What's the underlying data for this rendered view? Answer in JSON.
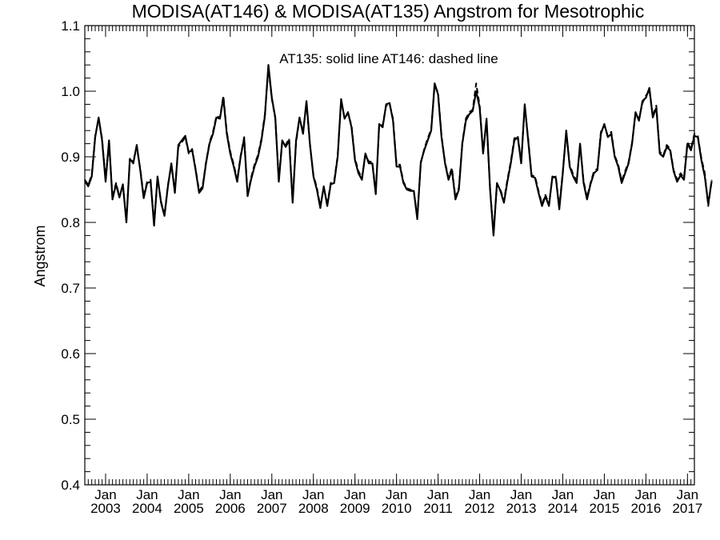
{
  "chart_data": {
    "type": "line",
    "title": "MODISA(AT146) & MODISA(AT135)  Angstrom for Mesotrophic",
    "xlabel": "",
    "ylabel": "Angstrom",
    "annotation": "AT135: solid line   AT146: dashed line",
    "ylim": [
      0.4,
      1.1
    ],
    "xlim": [
      "2002-07",
      "2017-03"
    ],
    "yticks": [
      "0.4",
      "0.5",
      "0.6",
      "0.7",
      "0.8",
      "0.9",
      "1.0",
      "1.1"
    ],
    "xticks": [
      {
        "month": "Jan",
        "year": "2003",
        "date": "2003-01"
      },
      {
        "month": "Jan",
        "year": "2004",
        "date": "2004-01"
      },
      {
        "month": "Jan",
        "year": "2005",
        "date": "2005-01"
      },
      {
        "month": "Jan",
        "year": "2006",
        "date": "2006-01"
      },
      {
        "month": "Jan",
        "year": "2007",
        "date": "2007-01"
      },
      {
        "month": "Jan",
        "year": "2008",
        "date": "2008-01"
      },
      {
        "month": "Jan",
        "year": "2009",
        "date": "2009-01"
      },
      {
        "month": "Jan",
        "year": "2010",
        "date": "2010-01"
      },
      {
        "month": "Jan",
        "year": "2011",
        "date": "2011-01"
      },
      {
        "month": "Jan",
        "year": "2012",
        "date": "2012-01"
      },
      {
        "month": "Jan",
        "year": "2013",
        "date": "2013-01"
      },
      {
        "month": "Jan",
        "year": "2014",
        "date": "2014-01"
      },
      {
        "month": "Jan",
        "year": "2015",
        "date": "2015-01"
      },
      {
        "month": "Jan",
        "year": "2016",
        "date": "2016-01"
      },
      {
        "month": "Jan",
        "year": "2017",
        "date": "2017-01"
      }
    ],
    "grid": false,
    "start": "2002-07",
    "series": [
      {
        "dash": "solid",
        "values": [
          0.863,
          0.855,
          0.87,
          0.93,
          0.96,
          0.925,
          0.862,
          0.925,
          0.835,
          0.858,
          0.838,
          0.858,
          0.8,
          0.897,
          0.89,
          0.918,
          0.88,
          0.837,
          0.86,
          0.862,
          0.795,
          0.87,
          0.83,
          0.81,
          0.855,
          0.89,
          0.845,
          0.918,
          0.925,
          0.932,
          0.907,
          0.91,
          0.88,
          0.845,
          0.852,
          0.89,
          0.92,
          0.935,
          0.96,
          0.958,
          0.99,
          0.935,
          0.905,
          0.885,
          0.862,
          0.9,
          0.928,
          0.84,
          0.865,
          0.885,
          0.9,
          0.925,
          0.962,
          1.04,
          0.99,
          0.96,
          0.862,
          0.925,
          0.915,
          0.925,
          0.83,
          0.925,
          0.96,
          0.935,
          0.985,
          0.92,
          0.87,
          0.85,
          0.822,
          0.855,
          0.825,
          0.858,
          0.86,
          0.9,
          0.988,
          0.958,
          0.968,
          0.945,
          0.895,
          0.875,
          0.865,
          0.905,
          0.89,
          0.89,
          0.843,
          0.95,
          0.945,
          0.98,
          0.982,
          0.955,
          0.885,
          0.885,
          0.86,
          0.85,
          0.848,
          0.848,
          0.805,
          0.892,
          0.91,
          0.925,
          0.94,
          1.012,
          0.995,
          0.93,
          0.89,
          0.865,
          0.88,
          0.835,
          0.85,
          0.92,
          0.955,
          0.965,
          0.97,
          1.0,
          0.975,
          0.905,
          0.958,
          0.85,
          0.78,
          0.86,
          0.848,
          0.83,
          0.862,
          0.89,
          0.925,
          0.93,
          0.89,
          0.98,
          0.925,
          0.87,
          0.868,
          0.845,
          0.825,
          0.84,
          0.825,
          0.87,
          0.868,
          0.82,
          0.875,
          0.94,
          0.885,
          0.87,
          0.86,
          0.92,
          0.86,
          0.835,
          0.858,
          0.875,
          0.88,
          0.935,
          0.95,
          0.93,
          0.935,
          0.9,
          0.885,
          0.86,
          0.875,
          0.89,
          0.92,
          0.968,
          0.955,
          0.985,
          0.99,
          1.005,
          0.96,
          0.975,
          0.905,
          0.9,
          0.915,
          0.91,
          0.878,
          0.862,
          0.872,
          0.865,
          0.92,
          0.91,
          0.932,
          0.93,
          0.895,
          0.87,
          0.828,
          0.863
        ]
      },
      {
        "dash": "dashed",
        "values": [
          0.865,
          0.857,
          0.873,
          0.932,
          0.958,
          0.928,
          0.865,
          0.922,
          0.838,
          0.86,
          0.84,
          0.856,
          0.803,
          0.895,
          0.893,
          0.915,
          0.882,
          0.84,
          0.862,
          0.865,
          0.798,
          0.868,
          0.832,
          0.812,
          0.857,
          0.888,
          0.848,
          0.915,
          0.922,
          0.93,
          0.905,
          0.912,
          0.882,
          0.848,
          0.855,
          0.892,
          0.922,
          0.938,
          0.962,
          0.96,
          0.993,
          0.938,
          0.908,
          0.888,
          0.865,
          0.902,
          0.93,
          0.842,
          0.868,
          0.888,
          0.903,
          0.928,
          0.965,
          1.035,
          0.988,
          0.958,
          0.865,
          0.922,
          0.918,
          0.928,
          0.833,
          0.922,
          0.958,
          0.938,
          0.982,
          0.918,
          0.872,
          0.853,
          0.825,
          0.853,
          0.828,
          0.86,
          0.863,
          0.902,
          0.985,
          0.96,
          0.965,
          0.948,
          0.898,
          0.878,
          0.868,
          0.902,
          0.893,
          0.892,
          0.846,
          0.948,
          0.948,
          0.978,
          0.98,
          0.958,
          0.888,
          0.888,
          0.862,
          0.852,
          0.85,
          0.846,
          0.808,
          0.89,
          0.912,
          0.928,
          0.942,
          1.008,
          0.998,
          0.932,
          0.892,
          0.868,
          0.883,
          0.838,
          0.853,
          0.922,
          0.958,
          0.968,
          0.972,
          1.012,
          0.978,
          0.908,
          0.955,
          0.852,
          0.783,
          0.858,
          0.85,
          0.833,
          0.865,
          0.893,
          0.928,
          0.932,
          0.892,
          0.978,
          0.928,
          0.872,
          0.87,
          0.848,
          0.828,
          0.842,
          0.828,
          0.868,
          0.87,
          0.823,
          0.878,
          0.938,
          0.888,
          0.873,
          0.863,
          0.918,
          0.863,
          0.838,
          0.86,
          0.878,
          0.882,
          0.938,
          0.948,
          0.932,
          0.938,
          0.902,
          0.888,
          0.863,
          0.878,
          0.892,
          0.922,
          0.965,
          0.958,
          0.982,
          0.993,
          1.002,
          0.962,
          0.978,
          0.908,
          0.902,
          0.918,
          0.912,
          0.88,
          0.865,
          0.875,
          0.868,
          0.922,
          0.912,
          0.935,
          0.932,
          0.898,
          0.875,
          0.825,
          0.865
        ]
      }
    ]
  }
}
